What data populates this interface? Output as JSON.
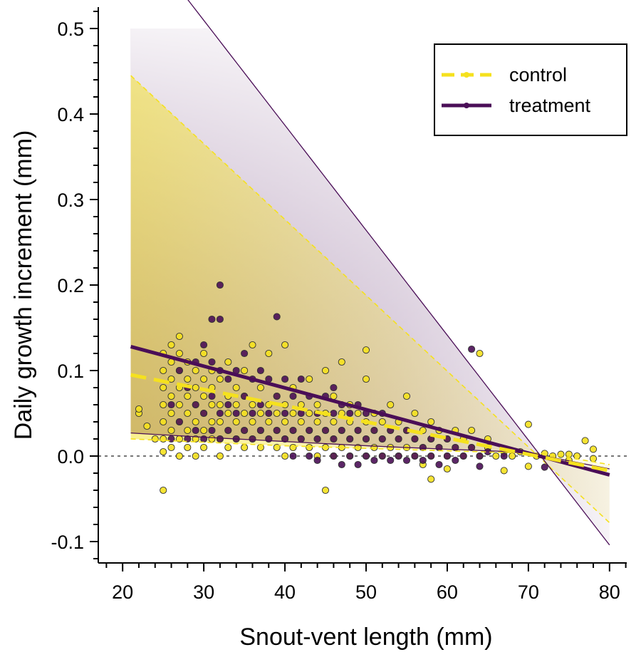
{
  "chart_data": {
    "type": "scatter",
    "title": "",
    "xlabel": "Snout-vent length (mm)",
    "ylabel": "Daily growth increment (mm)",
    "xlim": [
      17,
      83
    ],
    "ylim": [
      -0.125,
      0.525
    ],
    "xticks": [
      20,
      30,
      40,
      50,
      60,
      70,
      80
    ],
    "yticks": [
      -0.1,
      0.0,
      0.1,
      0.2,
      0.3,
      0.4,
      0.5
    ],
    "xtick_labels": [
      "20",
      "30",
      "40",
      "50",
      "60",
      "70",
      "80"
    ],
    "ytick_labels": [
      "-0.1",
      "0.0",
      "0.1",
      "0.2",
      "0.3",
      "0.4",
      "0.5"
    ],
    "reference_line_y": 0.0,
    "grid": false,
    "legend_position": "top-right",
    "colors": {
      "control": "#f5e11e",
      "treatment": "#4a0e57",
      "point_outline": "#333333"
    },
    "series": [
      {
        "name": "control",
        "style": "dashed",
        "fit": {
          "x": [
            21,
            80
          ],
          "y": [
            0.095,
            -0.017
          ]
        },
        "band_upper": {
          "x": [
            21,
            80
          ],
          "y": [
            0.445,
            -0.078
          ]
        },
        "band_lower": {
          "x": [
            21,
            40,
            60,
            68,
            72,
            80
          ],
          "y": [
            0.02,
            0.012,
            0.006,
            0.004,
            0.003,
            -0.01
          ]
        },
        "points": [
          [
            22,
            0.05
          ],
          [
            22,
            0.055
          ],
          [
            23,
            0.035
          ],
          [
            24,
            0.02
          ],
          [
            25,
            -0.04
          ],
          [
            25,
            0.005
          ],
          [
            25,
            0.02
          ],
          [
            25,
            0.04
          ],
          [
            25,
            0.06
          ],
          [
            25,
            0.08
          ],
          [
            25,
            0.1
          ],
          [
            25,
            0.12
          ],
          [
            26,
            0.01
          ],
          [
            26,
            0.03
          ],
          [
            26,
            0.05
          ],
          [
            26,
            0.07
          ],
          [
            26,
            0.09
          ],
          [
            26,
            0.11
          ],
          [
            26,
            0.13
          ],
          [
            27,
            0.0
          ],
          [
            27,
            0.02
          ],
          [
            27,
            0.04
          ],
          [
            27,
            0.06
          ],
          [
            27,
            0.08
          ],
          [
            27,
            0.1
          ],
          [
            27,
            0.12
          ],
          [
            27,
            0.14
          ],
          [
            28,
            0.01
          ],
          [
            28,
            0.03
          ],
          [
            28,
            0.05
          ],
          [
            28,
            0.07
          ],
          [
            28,
            0.09
          ],
          [
            28,
            0.11
          ],
          [
            29,
            0.0
          ],
          [
            29,
            0.02
          ],
          [
            29,
            0.04
          ],
          [
            29,
            0.06
          ],
          [
            29,
            0.08
          ],
          [
            29,
            0.1
          ],
          [
            30,
            0.01
          ],
          [
            30,
            0.03
          ],
          [
            30,
            0.05
          ],
          [
            30,
            0.07
          ],
          [
            30,
            0.09
          ],
          [
            30,
            0.12
          ],
          [
            31,
            0.02
          ],
          [
            31,
            0.04
          ],
          [
            31,
            0.06
          ],
          [
            31,
            0.08
          ],
          [
            31,
            0.1
          ],
          [
            32,
            0.0
          ],
          [
            32,
            0.02
          ],
          [
            32,
            0.04
          ],
          [
            32,
            0.06
          ],
          [
            32,
            0.09
          ],
          [
            33,
            0.01
          ],
          [
            33,
            0.03
          ],
          [
            33,
            0.05
          ],
          [
            33,
            0.07
          ],
          [
            33,
            0.11
          ],
          [
            34,
            0.02
          ],
          [
            34,
            0.04
          ],
          [
            34,
            0.06
          ],
          [
            34,
            0.08
          ],
          [
            35,
            0.01
          ],
          [
            35,
            0.03
          ],
          [
            35,
            0.05
          ],
          [
            35,
            0.07
          ],
          [
            35,
            0.1
          ],
          [
            36,
            0.02
          ],
          [
            36,
            0.04
          ],
          [
            36,
            0.06
          ],
          [
            36,
            0.13
          ],
          [
            37,
            0.01
          ],
          [
            37,
            0.03
          ],
          [
            37,
            0.05
          ],
          [
            37,
            0.08
          ],
          [
            38,
            0.02
          ],
          [
            38,
            0.04
          ],
          [
            38,
            0.06
          ],
          [
            38,
            0.12
          ],
          [
            39,
            0.01
          ],
          [
            39,
            0.03
          ],
          [
            39,
            0.05
          ],
          [
            39,
            0.07
          ],
          [
            40,
            0.0
          ],
          [
            40,
            0.02
          ],
          [
            40,
            0.04
          ],
          [
            40,
            0.06
          ],
          [
            40,
            0.13
          ],
          [
            41,
            0.01
          ],
          [
            41,
            0.03
          ],
          [
            41,
            0.05
          ],
          [
            41,
            0.08
          ],
          [
            42,
            0.02
          ],
          [
            42,
            0.04
          ],
          [
            42,
            0.06
          ],
          [
            43,
            0.01
          ],
          [
            43,
            0.03
          ],
          [
            43,
            0.05
          ],
          [
            43,
            0.09
          ],
          [
            44,
            0.0
          ],
          [
            44,
            0.02
          ],
          [
            44,
            0.04
          ],
          [
            44,
            0.06
          ],
          [
            45,
            -0.04
          ],
          [
            45,
            0.01
          ],
          [
            45,
            0.03
          ],
          [
            45,
            0.05
          ],
          [
            45,
            0.1
          ],
          [
            46,
            0.0
          ],
          [
            46,
            0.02
          ],
          [
            46,
            0.04
          ],
          [
            46,
            0.07
          ],
          [
            47,
            0.01
          ],
          [
            47,
            0.03
          ],
          [
            47,
            0.05
          ],
          [
            47,
            0.11
          ],
          [
            48,
            0.0
          ],
          [
            48,
            0.02
          ],
          [
            48,
            0.04
          ],
          [
            48,
            0.06
          ],
          [
            49,
            0.01
          ],
          [
            49,
            0.03
          ],
          [
            49,
            0.05
          ],
          [
            50,
            0.0
          ],
          [
            50,
            0.02
          ],
          [
            50,
            0.04
          ],
          [
            50,
            0.09
          ],
          [
            50,
            0.124
          ],
          [
            51,
            0.01
          ],
          [
            51,
            0.03
          ],
          [
            51,
            0.05
          ],
          [
            52,
            0.0
          ],
          [
            52,
            0.02
          ],
          [
            52,
            0.04
          ],
          [
            53,
            0.01
          ],
          [
            53,
            0.03
          ],
          [
            53,
            0.06
          ],
          [
            54,
            0.0
          ],
          [
            54,
            0.02
          ],
          [
            54,
            0.04
          ],
          [
            55,
            0.01
          ],
          [
            55,
            0.03
          ],
          [
            55,
            0.07
          ],
          [
            56,
            0.0
          ],
          [
            56,
            0.02
          ],
          [
            56,
            0.05
          ],
          [
            57,
            -0.01
          ],
          [
            57,
            0.01
          ],
          [
            57,
            0.03
          ],
          [
            58,
            -0.027
          ],
          [
            58,
            0.0
          ],
          [
            58,
            0.02
          ],
          [
            58,
            0.04
          ],
          [
            59,
            0.01
          ],
          [
            59,
            0.03
          ],
          [
            60,
            -0.015
          ],
          [
            60,
            0.0
          ],
          [
            60,
            0.02
          ],
          [
            61,
            0.01
          ],
          [
            61,
            0.03
          ],
          [
            62,
            0.0
          ],
          [
            62,
            0.02
          ],
          [
            63,
            0.01
          ],
          [
            63,
            0.03
          ],
          [
            64,
            0.12
          ],
          [
            64,
            0.0
          ],
          [
            65,
            0.02
          ],
          [
            65,
            0.01
          ],
          [
            66,
            0.0
          ],
          [
            67,
            -0.017
          ],
          [
            67,
            0.005
          ],
          [
            68,
            0.0
          ],
          [
            69,
            0.005
          ],
          [
            70,
            0.037
          ],
          [
            70,
            -0.012
          ],
          [
            71,
            0.0
          ],
          [
            72,
            0.003
          ],
          [
            73,
            0.0
          ],
          [
            74,
            0.002
          ],
          [
            75,
            -0.005
          ],
          [
            75,
            0.002
          ],
          [
            76,
            0.0
          ],
          [
            77,
            0.018
          ],
          [
            78,
            0.008
          ],
          [
            78,
            -0.003
          ]
        ]
      },
      {
        "name": "treatment",
        "style": "solid",
        "fit": {
          "x": [
            21,
            80
          ],
          "y": [
            0.128,
            -0.022
          ]
        },
        "band_upper": {
          "x": [
            21,
            80
          ],
          "y": [
            0.62,
            -0.104
          ]
        },
        "band_lower": {
          "x": [
            21,
            30,
            40,
            50,
            60,
            68,
            72,
            80
          ],
          "y": [
            0.027,
            0.022,
            0.017,
            0.012,
            0.008,
            0.005,
            0.0,
            -0.015
          ]
        },
        "points": [
          [
            26,
            0.02
          ],
          [
            26,
            0.06
          ],
          [
            27,
            0.04
          ],
          [
            27,
            0.1
          ],
          [
            28,
            0.02
          ],
          [
            28,
            0.08
          ],
          [
            29,
            0.03
          ],
          [
            29,
            0.06
          ],
          [
            29,
            0.11
          ],
          [
            30,
            0.02
          ],
          [
            30,
            0.05
          ],
          [
            30,
            0.13
          ],
          [
            31,
            0.16
          ],
          [
            31,
            0.03
          ],
          [
            31,
            0.07
          ],
          [
            31,
            0.11
          ],
          [
            32,
            0.2
          ],
          [
            32,
            0.16
          ],
          [
            32,
            0.02
          ],
          [
            32,
            0.05
          ],
          [
            32,
            0.1
          ],
          [
            33,
            0.03
          ],
          [
            33,
            0.06
          ],
          [
            33,
            0.09
          ],
          [
            34,
            0.02
          ],
          [
            34,
            0.05
          ],
          [
            34,
            0.1
          ],
          [
            35,
            0.03
          ],
          [
            35,
            0.07
          ],
          [
            35,
            0.12
          ],
          [
            36,
            0.02
          ],
          [
            36,
            0.05
          ],
          [
            36,
            0.09
          ],
          [
            37,
            0.03
          ],
          [
            37,
            0.06
          ],
          [
            37,
            0.1
          ],
          [
            38,
            0.02
          ],
          [
            38,
            0.05
          ],
          [
            38,
            0.09
          ],
          [
            39,
            0.163
          ],
          [
            39,
            0.03
          ],
          [
            39,
            0.07
          ],
          [
            40,
            0.02
          ],
          [
            40,
            0.05
          ],
          [
            40,
            0.09
          ],
          [
            41,
            0.0
          ],
          [
            41,
            0.03
          ],
          [
            41,
            0.07
          ],
          [
            42,
            0.02
          ],
          [
            42,
            0.05
          ],
          [
            42,
            0.09
          ],
          [
            43,
            0.0
          ],
          [
            43,
            0.03
          ],
          [
            43,
            0.07
          ],
          [
            44,
            -0.005
          ],
          [
            44,
            0.02
          ],
          [
            44,
            0.05
          ],
          [
            45,
            0.03
          ],
          [
            45,
            0.07
          ],
          [
            46,
            0.0
          ],
          [
            46,
            0.02
          ],
          [
            46,
            0.05
          ],
          [
            46,
            0.08
          ],
          [
            47,
            -0.01
          ],
          [
            47,
            0.03
          ],
          [
            47,
            0.06
          ],
          [
            48,
            0.0
          ],
          [
            48,
            0.02
          ],
          [
            48,
            0.05
          ],
          [
            49,
            -0.01
          ],
          [
            49,
            0.03
          ],
          [
            49,
            0.06
          ],
          [
            50,
            0.0
          ],
          [
            50,
            0.02
          ],
          [
            50,
            0.05
          ],
          [
            51,
            -0.005
          ],
          [
            51,
            0.03
          ],
          [
            52,
            0.0
          ],
          [
            52,
            0.02
          ],
          [
            52,
            0.05
          ],
          [
            53,
            -0.005
          ],
          [
            53,
            0.03
          ],
          [
            54,
            0.0
          ],
          [
            54,
            0.02
          ],
          [
            55,
            -0.005
          ],
          [
            55,
            0.03
          ],
          [
            56,
            0.0
          ],
          [
            56,
            0.02
          ],
          [
            57,
            -0.005
          ],
          [
            57,
            0.01
          ],
          [
            58,
            0.0
          ],
          [
            58,
            0.02
          ],
          [
            59,
            -0.01
          ],
          [
            59,
            0.01
          ],
          [
            60,
            0.0
          ],
          [
            60,
            0.02
          ],
          [
            61,
            -0.005
          ],
          [
            61,
            0.01
          ],
          [
            62,
            0.0
          ],
          [
            63,
            0.125
          ],
          [
            63,
            0.01
          ],
          [
            64,
            -0.012
          ],
          [
            64,
            0.0
          ],
          [
            65,
            0.005
          ],
          [
            67,
            0.0
          ],
          [
            72,
            -0.013
          ]
        ]
      }
    ]
  }
}
